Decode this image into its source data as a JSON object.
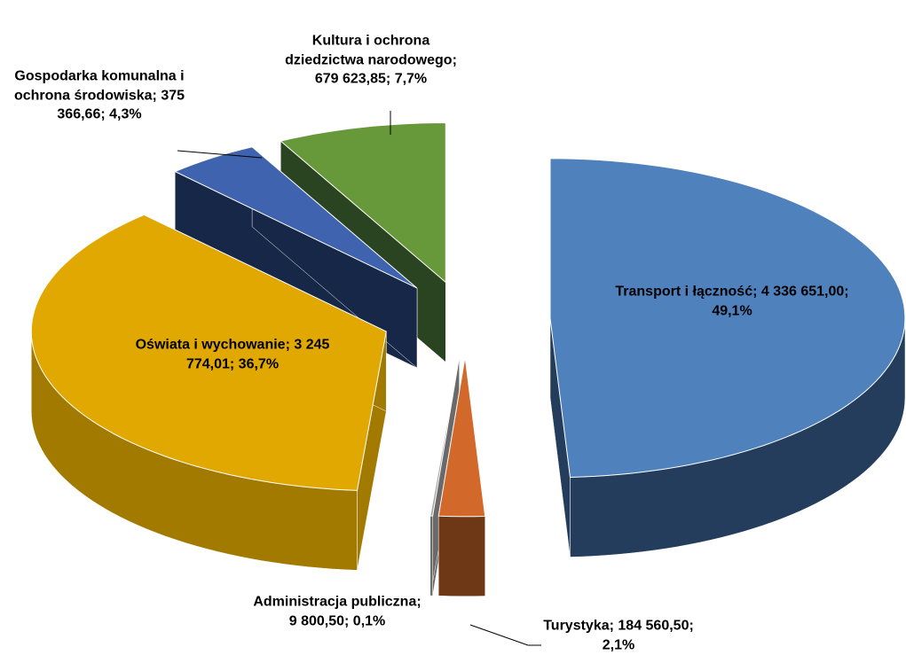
{
  "chart_data": {
    "type": "pie3d",
    "categories": [
      "Transport i łączność",
      "Turystyka",
      "Administracja publiczna",
      "Oświata i wychowanie",
      "Gospodarka komunalna i ochrona środowiska",
      "Kultura i ochrona dziedzictwa narodowego"
    ],
    "values": [
      4336651.0,
      184560.5,
      9800.5,
      3245774.01,
      375366.66,
      679623.85
    ],
    "value_labels": [
      "4 336 651,00",
      "184 560,50",
      "9 800,50",
      "3 245 774,01",
      "375 366,66",
      "679 623,85"
    ],
    "percents": [
      49.1,
      2.1,
      0.1,
      36.7,
      4.3,
      7.7
    ],
    "percent_labels": [
      "49,1%",
      "2,1%",
      "0,1%",
      "36,7%",
      "4,3%",
      "7,7%"
    ],
    "label_separator": ";",
    "colors": [
      "#4f81bd",
      "#d2692a",
      "#a5a5a5",
      "#e0a800",
      "#3f63ae",
      "#67983a"
    ],
    "side_colors": [
      "#243d5c",
      "#6e3716",
      "#6a6a6a",
      "#a27a00",
      "#172748",
      "#2a4320"
    ]
  }
}
